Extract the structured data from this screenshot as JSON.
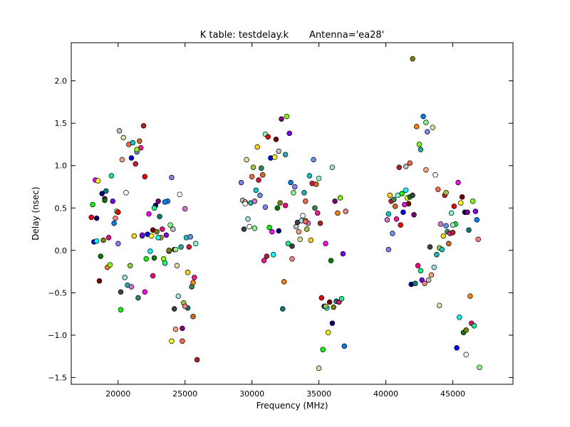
{
  "chart_data": {
    "type": "scatter",
    "title": "K table: testdelay.k       Antenna='ea28'",
    "xlabel": "Frequency (MHz)",
    "ylabel": "Delay (nsec)",
    "xlim": [
      16500,
      49500
    ],
    "ylim": [
      -1.58,
      2.45
    ],
    "xticks": [
      20000,
      25000,
      30000,
      35000,
      40000,
      45000
    ],
    "yticks": [
      -1.5,
      -1.0,
      -0.5,
      0.0,
      0.5,
      1.0,
      1.5,
      2.0
    ],
    "xtick_labels": [
      "20000",
      "25000",
      "30000",
      "35000",
      "40000",
      "45000"
    ],
    "ytick_labels": [
      "−1.5",
      "−1.0",
      "−0.5",
      "0.0",
      "0.5",
      "1.0",
      "1.5",
      "2.0"
    ],
    "grid": false,
    "legend": "none",
    "marker": "circle-with-black-edge",
    "palette": [
      "#ff0000",
      "#00ff00",
      "#0000ff",
      "#ff00ff",
      "#00ffff",
      "#ffff00",
      "#800000",
      "#008000",
      "#000080",
      "#808000",
      "#800080",
      "#008080",
      "#ff8000",
      "#ff0080",
      "#80ff00",
      "#00ff80",
      "#8000ff",
      "#0080ff",
      "#ff8080",
      "#80ff80",
      "#8080ff",
      "#c0c0c0",
      "#404040",
      "#ffa07a",
      "#e0e0a0",
      "#a0e0e0",
      "#ffffff",
      "#20b2aa",
      "#ff6347",
      "#9acd32",
      "#da70d6",
      "#00ced1",
      "#ffd700",
      "#dc143c",
      "#6495ed",
      "#2e8b57",
      "#d2691e",
      "#ff1493",
      "#7fffd4",
      "#b22222"
    ],
    "points": [
      [
        18000,
        0.39
      ],
      [
        18100,
        0.54
      ],
      [
        18200,
        0.1
      ],
      [
        18300,
        0.83
      ],
      [
        18400,
        0.11
      ],
      [
        18500,
        0.82
      ],
      [
        18600,
        -0.36
      ],
      [
        18700,
        -0.07
      ],
      [
        18800,
        0.67
      ],
      [
        18900,
        0.12
      ],
      [
        19000,
        0.61
      ],
      [
        19100,
        0.7
      ],
      [
        19200,
        -0.2
      ],
      [
        19300,
        0.15
      ],
      [
        19400,
        -0.17
      ],
      [
        19500,
        0.88
      ],
      [
        19600,
        0.58
      ],
      [
        19700,
        0.32
      ],
      [
        19800,
        0.38
      ],
      [
        19900,
        0.46
      ],
      [
        20000,
        0.08
      ],
      [
        20100,
        1.41
      ],
      [
        20200,
        -0.49
      ],
      [
        20300,
        1.07
      ],
      [
        20400,
        1.33
      ],
      [
        20500,
        -0.32
      ],
      [
        20600,
        0.68
      ],
      [
        20700,
        -0.41
      ],
      [
        20800,
        1.25
      ],
      [
        20900,
        -0.18
      ],
      [
        21000,
        -0.43
      ],
      [
        21100,
        1.27
      ],
      [
        21200,
        0.17
      ],
      [
        21300,
        1.02
      ],
      [
        21400,
        1.16
      ],
      [
        21500,
        -0.56
      ],
      [
        21600,
        1.29
      ],
      [
        21700,
        1.21
      ],
      [
        21800,
        0.17
      ],
      [
        21900,
        1.47
      ],
      [
        22000,
        0.87
      ],
      [
        22100,
        -0.1
      ],
      [
        22200,
        0.19
      ],
      [
        22300,
        0.43
      ],
      [
        22400,
        -0.01
      ],
      [
        22500,
        0.17
      ],
      [
        22600,
        0.24
      ],
      [
        22700,
        -0.09
      ],
      [
        22800,
        0.53
      ],
      [
        22900,
        0.22
      ],
      [
        23000,
        0.58
      ],
      [
        23100,
        0.4
      ],
      [
        23200,
        0.15
      ],
      [
        23300,
        0.25
      ],
      [
        23400,
        -0.1
      ],
      [
        23500,
        -0.15
      ],
      [
        23600,
        0.18
      ],
      [
        23700,
        0.58
      ],
      [
        23800,
        -0.01
      ],
      [
        23900,
        0.3
      ],
      [
        24000,
        0.86
      ],
      [
        24100,
        0.25
      ],
      [
        24200,
        -0.69
      ],
      [
        24300,
        -0.93
      ],
      [
        24400,
        -0.18
      ],
      [
        24500,
        -0.54
      ],
      [
        24600,
        0.66
      ],
      [
        24700,
        0.04
      ],
      [
        24800,
        -1.07
      ],
      [
        24900,
        -0.62
      ],
      [
        25000,
        0.49
      ],
      [
        25100,
        0.15
      ],
      [
        25200,
        -0.26
      ],
      [
        25300,
        0.04
      ],
      [
        25400,
        0.16
      ],
      [
        25500,
        -0.43
      ],
      [
        25600,
        -0.78
      ],
      [
        25700,
        -0.32
      ],
      [
        25800,
        0.08
      ],
      [
        25900,
        -1.29
      ],
      [
        20000,
        0.45
      ],
      [
        20200,
        -0.7
      ],
      [
        21000,
        1.09
      ],
      [
        22000,
        -0.49
      ],
      [
        23000,
        0.15
      ],
      [
        24000,
        -1.07
      ],
      [
        24200,
        0.01
      ],
      [
        19000,
        0.59
      ],
      [
        18400,
        0.38
      ],
      [
        23800,
        0.0
      ],
      [
        24800,
        -0.92
      ],
      [
        25200,
        -0.68
      ],
      [
        25600,
        -0.38
      ],
      [
        22600,
        -0.3
      ],
      [
        21400,
        1.19
      ],
      [
        22700,
        0.5
      ],
      [
        21800,
        0.18
      ],
      [
        23500,
        0.57
      ],
      [
        25000,
        -0.66
      ],
      [
        24300,
        0.01
      ],
      [
        29200,
        0.8
      ],
      [
        29300,
        0.59
      ],
      [
        29400,
        0.25
      ],
      [
        29500,
        0.57
      ],
      [
        29600,
        1.07
      ],
      [
        29700,
        0.37
      ],
      [
        29800,
        0.28
      ],
      [
        29900,
        0.56
      ],
      [
        30000,
        0.87
      ],
      [
        30100,
        0.98
      ],
      [
        30200,
        0.58
      ],
      [
        30300,
        0.71
      ],
      [
        30400,
        1.22
      ],
      [
        30500,
        0.83
      ],
      [
        30600,
        0.65
      ],
      [
        30700,
        0.97
      ],
      [
        30800,
        0.89
      ],
      [
        30900,
        -0.12
      ],
      [
        31000,
        1.37
      ],
      [
        31100,
        -0.07
      ],
      [
        31200,
        1.34
      ],
      [
        31300,
        0.27
      ],
      [
        31400,
        1.09
      ],
      [
        31500,
        0.22
      ],
      [
        31600,
        -0.05
      ],
      [
        31700,
        1.1
      ],
      [
        31800,
        1.31
      ],
      [
        31900,
        0.5
      ],
      [
        32000,
        0.23
      ],
      [
        32100,
        0.56
      ],
      [
        32200,
        1.55
      ],
      [
        32300,
        -0.69
      ],
      [
        32400,
        -0.37
      ],
      [
        32500,
        0.53
      ],
      [
        32600,
        1.58
      ],
      [
        32700,
        0.08
      ],
      [
        32800,
        1.38
      ],
      [
        32900,
        0.8
      ],
      [
        33000,
        -0.1
      ],
      [
        33100,
        0.68
      ],
      [
        33200,
        0.75
      ],
      [
        33300,
        0.28
      ],
      [
        33400,
        0.33
      ],
      [
        33500,
        0.22
      ],
      [
        33600,
        0.13
      ],
      [
        33700,
        0.35
      ],
      [
        33800,
        0.41
      ],
      [
        33900,
        0.68
      ],
      [
        34000,
        0.58
      ],
      [
        34100,
        0.25
      ],
      [
        34200,
        0.32
      ],
      [
        34300,
        0.88
      ],
      [
        34400,
        0.12
      ],
      [
        34500,
        0.79
      ],
      [
        34600,
        1.07
      ],
      [
        34700,
        0.5
      ],
      [
        34800,
        0.78
      ],
      [
        34900,
        0.44
      ],
      [
        35000,
        0.85
      ],
      [
        35100,
        0.32
      ],
      [
        35200,
        -0.56
      ],
      [
        35300,
        -1.17
      ],
      [
        35400,
        -0.66
      ],
      [
        35500,
        0.08
      ],
      [
        35600,
        -0.68
      ],
      [
        35700,
        -0.97
      ],
      [
        35800,
        -0.61
      ],
      [
        35900,
        -0.12
      ],
      [
        36000,
        -0.86
      ],
      [
        36100,
        -0.67
      ],
      [
        36200,
        0.58
      ],
      [
        36300,
        -0.6
      ],
      [
        36400,
        0.44
      ],
      [
        36500,
        -0.61
      ],
      [
        36600,
        0.62
      ],
      [
        36700,
        -0.57
      ],
      [
        36800,
        -0.04
      ],
      [
        36900,
        -1.13
      ],
      [
        37000,
        0.46
      ],
      [
        30200,
        0.26
      ],
      [
        31000,
        0.51
      ],
      [
        32000,
        1.17
      ],
      [
        33000,
        0.05
      ],
      [
        34000,
        0.35
      ],
      [
        35000,
        -1.39
      ],
      [
        36000,
        0.98
      ],
      [
        29500,
        0.55
      ],
      [
        32500,
        1.13
      ],
      [
        34000,
        0.34
      ],
      [
        35500,
        -0.66
      ],
      [
        40100,
        0.36
      ],
      [
        40200,
        0.43
      ],
      [
        40300,
        0.65
      ],
      [
        40400,
        0.58
      ],
      [
        40500,
        0.2
      ],
      [
        40600,
        0.6
      ],
      [
        40700,
        0.52
      ],
      [
        40800,
        0.37
      ],
      [
        40900,
        0.65
      ],
      [
        41000,
        0.98
      ],
      [
        41100,
        0.3
      ],
      [
        41200,
        0.67
      ],
      [
        41300,
        0.45
      ],
      [
        41400,
        0.54
      ],
      [
        41500,
        0.71
      ],
      [
        41600,
        0.62
      ],
      [
        41700,
        0.55
      ],
      [
        41800,
        0.63
      ],
      [
        41900,
        -0.4
      ],
      [
        42000,
        2.26
      ],
      [
        42100,
        0.42
      ],
      [
        42200,
        -0.39
      ],
      [
        42300,
        1.46
      ],
      [
        42400,
        -0.18
      ],
      [
        42500,
        1.25
      ],
      [
        42600,
        -0.24
      ],
      [
        42700,
        -0.35
      ],
      [
        42800,
        1.58
      ],
      [
        42900,
        -0.39
      ],
      [
        43000,
        1.51
      ],
      [
        43100,
        1.4
      ],
      [
        43200,
        -0.35
      ],
      [
        43300,
        0.04
      ],
      [
        43400,
        -0.29
      ],
      [
        43500,
        1.45
      ],
      [
        43600,
        -0.2
      ],
      [
        43700,
        0.89
      ],
      [
        43800,
        -0.05
      ],
      [
        43900,
        0.72
      ],
      [
        44000,
        0.03
      ],
      [
        44100,
        0.31
      ],
      [
        44200,
        0.01
      ],
      [
        44300,
        0.17
      ],
      [
        44400,
        0.65
      ],
      [
        44500,
        0.29
      ],
      [
        44600,
        0.22
      ],
      [
        44700,
        0.08
      ],
      [
        44800,
        0.2
      ],
      [
        44900,
        0.44
      ],
      [
        45000,
        0.21
      ],
      [
        45100,
        0.52
      ],
      [
        45200,
        0.31
      ],
      [
        45300,
        -1.15
      ],
      [
        45400,
        0.8
      ],
      [
        45500,
        -0.79
      ],
      [
        45600,
        0.56
      ],
      [
        45700,
        0.63
      ],
      [
        45800,
        -0.97
      ],
      [
        45900,
        0.45
      ],
      [
        46000,
        -0.94
      ],
      [
        46100,
        0.45
      ],
      [
        46200,
        0.24
      ],
      [
        46300,
        -0.54
      ],
      [
        46400,
        -0.86
      ],
      [
        46500,
        0.58
      ],
      [
        46600,
        -0.89
      ],
      [
        46700,
        0.46
      ],
      [
        46800,
        0.36
      ],
      [
        46900,
        0.13
      ],
      [
        47000,
        -1.38
      ],
      [
        40200,
        0.01
      ],
      [
        41500,
        0.99
      ],
      [
        42000,
        0.65
      ],
      [
        43000,
        0.95
      ],
      [
        44000,
        -0.65
      ],
      [
        45000,
        0.3
      ],
      [
        46000,
        -1.23
      ],
      [
        42600,
        1.19
      ],
      [
        41800,
        1.03
      ],
      [
        44500,
        0.68
      ]
    ]
  }
}
